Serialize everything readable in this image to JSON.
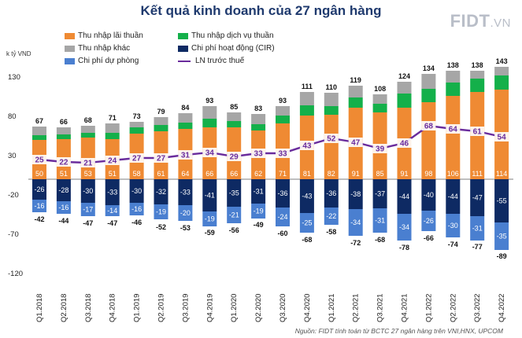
{
  "title": "Kết quả kinh doanh của 27 ngân hàng",
  "brand": {
    "main": "FIDT",
    "suffix": ".VN"
  },
  "unit_label": "k tỷ VND",
  "source": "Nguồn: FIDT tính toán từ BCTC 27 ngân hàng trên VNI,HNX, UPCOM",
  "legend": {
    "nii": "Thu nhập lãi thuần",
    "fee": "Thu nhập dịch vụ thuần",
    "other": "Thu nhập khác",
    "opex": "Chi phí hoạt động (CIR)",
    "prov": "Chi phí dự phòng",
    "pbt": "LN trước thuế"
  },
  "colors": {
    "nii": "#ef8a33",
    "fee": "#14b04a",
    "other": "#a6a6a6",
    "opex": "#0e2a63",
    "prov": "#4a7fd0",
    "pbt": "#6a2c9c"
  },
  "chart_data": {
    "type": "bar",
    "categories": [
      "Q1.2018",
      "Q2.2018",
      "Q3.2018",
      "Q4.2018",
      "Q1.2019",
      "Q2.2019",
      "Q3.2019",
      "Q4.2019",
      "Q1.2020",
      "Q2.2020",
      "Q3.2020",
      "Q4.2020",
      "Q1.2021",
      "Q2.2021",
      "Q3.2021",
      "Q4.2021",
      "Q1.2022",
      "Q2.2022",
      "Q3.2022",
      "Q4.2022"
    ],
    "yticks": [
      130,
      80,
      30,
      -20,
      -70,
      -120
    ],
    "ylim": [
      -120,
      148
    ],
    "series": [
      {
        "name": "Thu nhập lãi thuần",
        "values": [
          50,
          51,
          53,
          51,
          58,
          61,
          64,
          66,
          66,
          62,
          71,
          81,
          82,
          91,
          85,
          91,
          98,
          106,
          111,
          114
        ]
      },
      {
        "name": "Thu nhập dịch vụ thuần",
        "values": [
          6,
          6,
          6,
          8,
          8,
          8,
          8,
          11,
          8,
          8,
          10,
          13,
          11,
          13,
          11,
          18,
          17,
          17,
          17,
          18
        ]
      },
      {
        "name": "Thu nhập khác",
        "values": [
          11,
          9,
          9,
          12,
          7,
          10,
          12,
          16,
          11,
          13,
          12,
          17,
          17,
          15,
          12,
          15,
          19,
          15,
          10,
          11
        ]
      },
      {
        "name": "Chi phí hoạt động (CIR)",
        "values": [
          -26,
          -28,
          -30,
          -33,
          -30,
          -32,
          -33,
          -41,
          -35,
          -31,
          -36,
          -43,
          -36,
          -38,
          -37,
          -44,
          -40,
          -44,
          -47,
          -55
        ]
      },
      {
        "name": "Chi phí dự phòng",
        "values": [
          -16,
          -16,
          -17,
          -14,
          -16,
          -19,
          -20,
          -19,
          -21,
          -19,
          -24,
          -25,
          -22,
          -34,
          -31,
          -34,
          -26,
          -30,
          -31,
          -35
        ]
      }
    ],
    "income_totals": [
      67,
      66,
      68,
      71,
      73,
      79,
      84,
      93,
      85,
      83,
      93,
      111,
      110,
      119,
      108,
      124,
      134,
      138,
      138,
      143
    ],
    "cost_totals": [
      -42,
      -44,
      -47,
      -47,
      -46,
      -52,
      -53,
      -59,
      -56,
      -49,
      -60,
      -68,
      -58,
      -72,
      -68,
      -78,
      -66,
      -74,
      -77,
      -89
    ],
    "pbt": {
      "name": "LN trước thuế",
      "values": [
        25,
        22,
        21,
        24,
        27,
        27,
        31,
        34,
        29,
        33,
        33,
        43,
        52,
        47,
        39,
        46,
        68,
        64,
        61,
        54
      ]
    }
  }
}
